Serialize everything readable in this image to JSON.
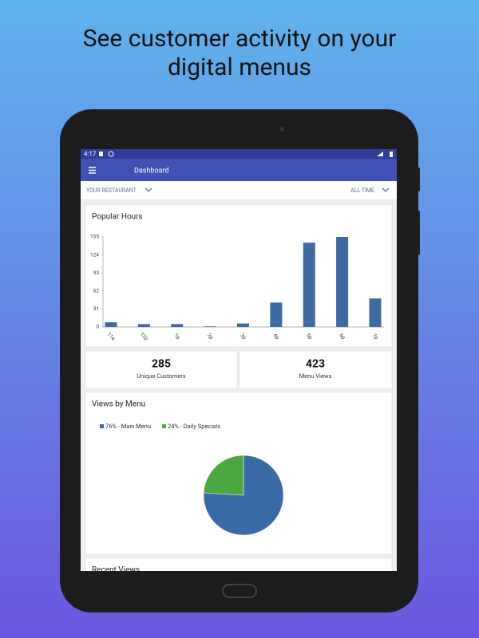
{
  "headline": [
    "See customer activity on your",
    "digital menus"
  ],
  "status_bar": {
    "time": "4:17"
  },
  "app_bar": {
    "title": "Dashboard"
  },
  "filters": {
    "restaurant": "YOUR RESTAURANT",
    "period": "ALL TIME"
  },
  "popular_hours": {
    "chart_data": {
      "type": "bar",
      "title": "Popular Hours",
      "categories": [
        "11a",
        "12p",
        "1p",
        "2p",
        "3p",
        "4p",
        "5p",
        "6p",
        "7p"
      ],
      "values": [
        8,
        5,
        5,
        1,
        6,
        42,
        145,
        155,
        49
      ],
      "color": "#3d6aa3",
      "ylim": [
        0,
        155
      ],
      "yticks": [
        0,
        31,
        62,
        93,
        124,
        155
      ]
    }
  },
  "stats": [
    {
      "value": 285,
      "label": "Unique Customers"
    },
    {
      "value": 423,
      "label": "Menu Views"
    }
  ],
  "views_by_menu": {
    "chart_data": {
      "type": "pie",
      "title": "Views by Menu",
      "categories": [
        "Main Menu",
        "Daily Specials"
      ],
      "values": [
        76,
        24
      ],
      "value_labels": [
        "76% - Main Menu",
        "24% - Daily Specials"
      ],
      "colors": [
        "#3a6aa6",
        "#4aa83f"
      ]
    }
  },
  "recent_views": {
    "title": "Recent Views"
  }
}
